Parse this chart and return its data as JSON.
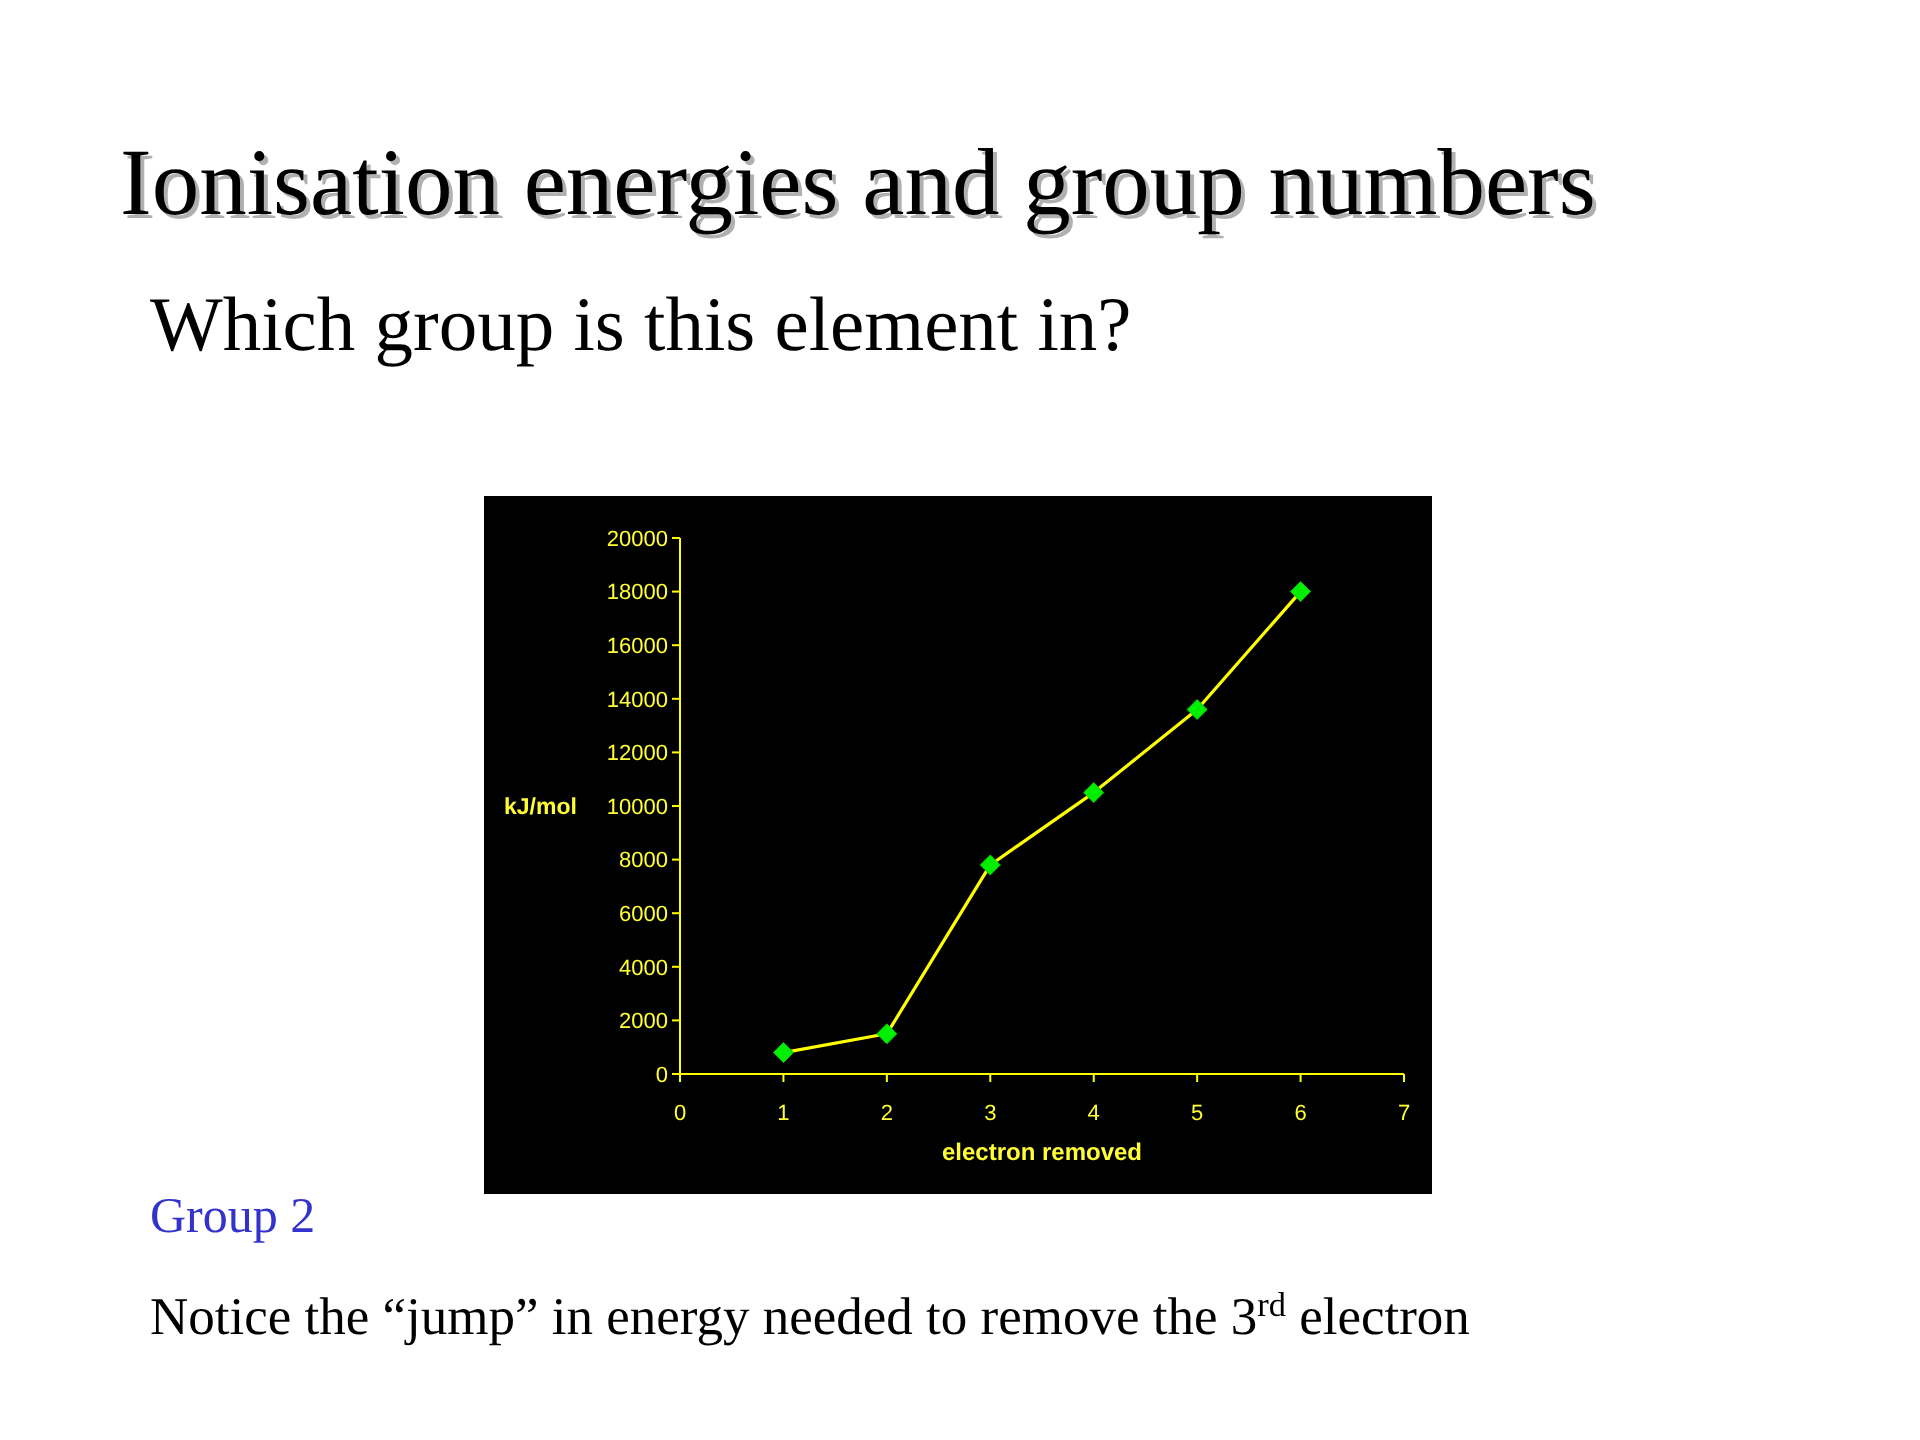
{
  "chart_data": {
    "type": "line",
    "title": "Ionisation energies and group numbers",
    "subtitle": "Which group is this element in?",
    "xlabel": "electron removed",
    "ylabel": "kJ/mol",
    "annotations": [
      "Group 2",
      "Notice the “jump” in energy needed to remove the 3$^{rd}$ electron"
    ],
    "x": [
      1,
      2,
      3,
      4,
      5,
      6
    ],
    "series": [
      {
        "color": "#ffff00",
        "values": [
          800,
          1500,
          7800,
          10500,
          13600,
          18000
        ]
      }
    ],
    "xlim": [
      0,
      7
    ],
    "xticks": [
      0,
      1,
      2,
      3,
      4,
      5,
      6,
      7
    ],
    "ylim": [
      0,
      20000
    ],
    "yticks": [
      0,
      2000,
      4000,
      6000,
      8000,
      10000,
      12000,
      14000,
      16000,
      18000,
      20000
    ],
    "marker": "diamond",
    "line_style": "solid"
  }
}
